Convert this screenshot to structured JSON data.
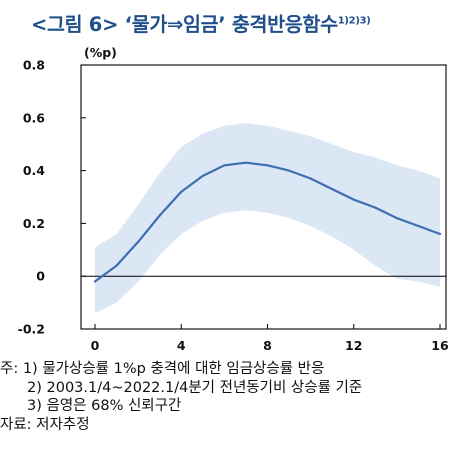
{
  "figure_title": "<그림 6> ‘물가⇒임금’ 충격반응함수",
  "figure_title_sup": "1)2)3)",
  "notes": [
    "주: 1) 물가상승률 1%p 충격에 대한 임금상승률 반응",
    "2) 2003.1/4~2022.1/4분기 전년동기비 상승률 기준",
    "3) 음영은 68% 신뢰구간",
    "자료: 저자추정"
  ],
  "colors": {
    "title": "#1f4e8a",
    "line": "#3e6db0",
    "band": "#dbe7f5"
  },
  "chart_data": {
    "type": "line",
    "title": "",
    "xlabel": "",
    "ylabel": "(%p)",
    "xlim": [
      0,
      16
    ],
    "ylim": [
      -0.2,
      0.8
    ],
    "x_ticks": [
      "0",
      "4",
      "8",
      "12",
      "16"
    ],
    "y_ticks": [
      "0.8",
      "0.6",
      "0.4",
      "0.2",
      "0",
      "-0.2"
    ],
    "grid": false,
    "x": [
      0,
      1,
      2,
      3,
      4,
      5,
      6,
      7,
      8,
      9,
      10,
      11,
      12,
      13,
      14,
      15,
      16
    ],
    "series": [
      {
        "values": [
          -0.02,
          0.04,
          0.13,
          0.23,
          0.32,
          0.38,
          0.42,
          0.43,
          0.42,
          0.4,
          0.37,
          0.33,
          0.29,
          0.26,
          0.22,
          0.19,
          0.16
        ]
      }
    ],
    "band_upper": [
      0.11,
      0.16,
      0.27,
      0.39,
      0.49,
      0.54,
      0.57,
      0.58,
      0.57,
      0.55,
      0.53,
      0.5,
      0.47,
      0.45,
      0.42,
      0.4,
      0.37
    ],
    "band_lower": [
      -0.14,
      -0.1,
      -0.02,
      0.08,
      0.16,
      0.21,
      0.24,
      0.25,
      0.24,
      0.22,
      0.19,
      0.15,
      0.1,
      0.04,
      -0.01,
      -0.02,
      -0.04
    ]
  }
}
